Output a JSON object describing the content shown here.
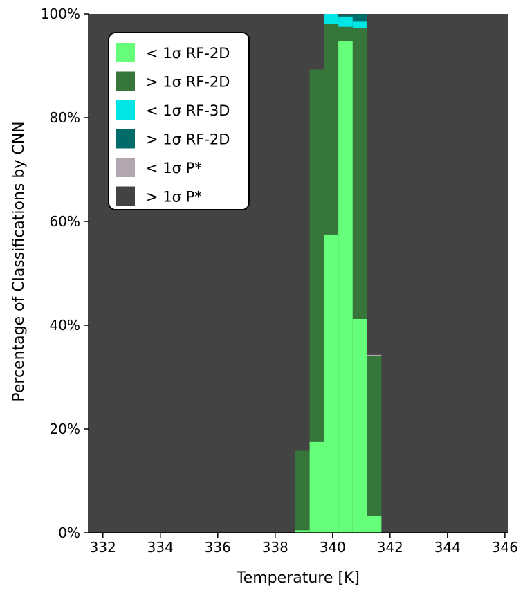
{
  "chart_data": {
    "type": "bar",
    "stacked": true,
    "xlabel": "Temperature [K]",
    "ylabel": "Percentage of Classifications by CNN",
    "xlim": [
      331.5,
      346.1
    ],
    "ylim": [
      0,
      100
    ],
    "xticks": [
      332,
      334,
      336,
      338,
      340,
      342,
      344,
      346
    ],
    "yticks": [
      0,
      20,
      40,
      60,
      80,
      100
    ],
    "ytick_labels": [
      "0%",
      "20%",
      "40%",
      "60%",
      "80%",
      "100%"
    ],
    "bin_width": 0.5,
    "x": [
      338.95,
      339.45,
      339.95,
      340.45,
      340.95,
      341.45
    ],
    "series": [
      {
        "name": "< 1σ RF-2D",
        "color": "#66ff7a",
        "values": [
          0.5,
          17.5,
          57.5,
          94.8,
          41.2,
          3.2
        ]
      },
      {
        "name": "> 1σ RF-2D",
        "color": "#36763a",
        "values": [
          15.3,
          71.8,
          40.5,
          2.7,
          56.0,
          30.8
        ]
      },
      {
        "name": "< 1σ RF-3D",
        "color": "#00e5e5",
        "values": [
          0,
          0,
          2.0,
          2.0,
          1.3,
          0
        ]
      },
      {
        "name": "> 1σ RF-2D",
        "color": "#006b6b",
        "values": [
          0,
          0,
          0,
          0.3,
          1.5,
          0
        ]
      },
      {
        "name": "< 1σ P*",
        "color": "#b3a6b1",
        "values": [
          0,
          0,
          0,
          0,
          0,
          0.3
        ]
      },
      {
        "name": "> 1σ P*",
        "color": "#434343",
        "values": [
          84.2,
          10.7,
          0,
          0.2,
          0,
          65.7
        ]
      }
    ],
    "background_color": "#434343",
    "legend_position": "top-left"
  }
}
